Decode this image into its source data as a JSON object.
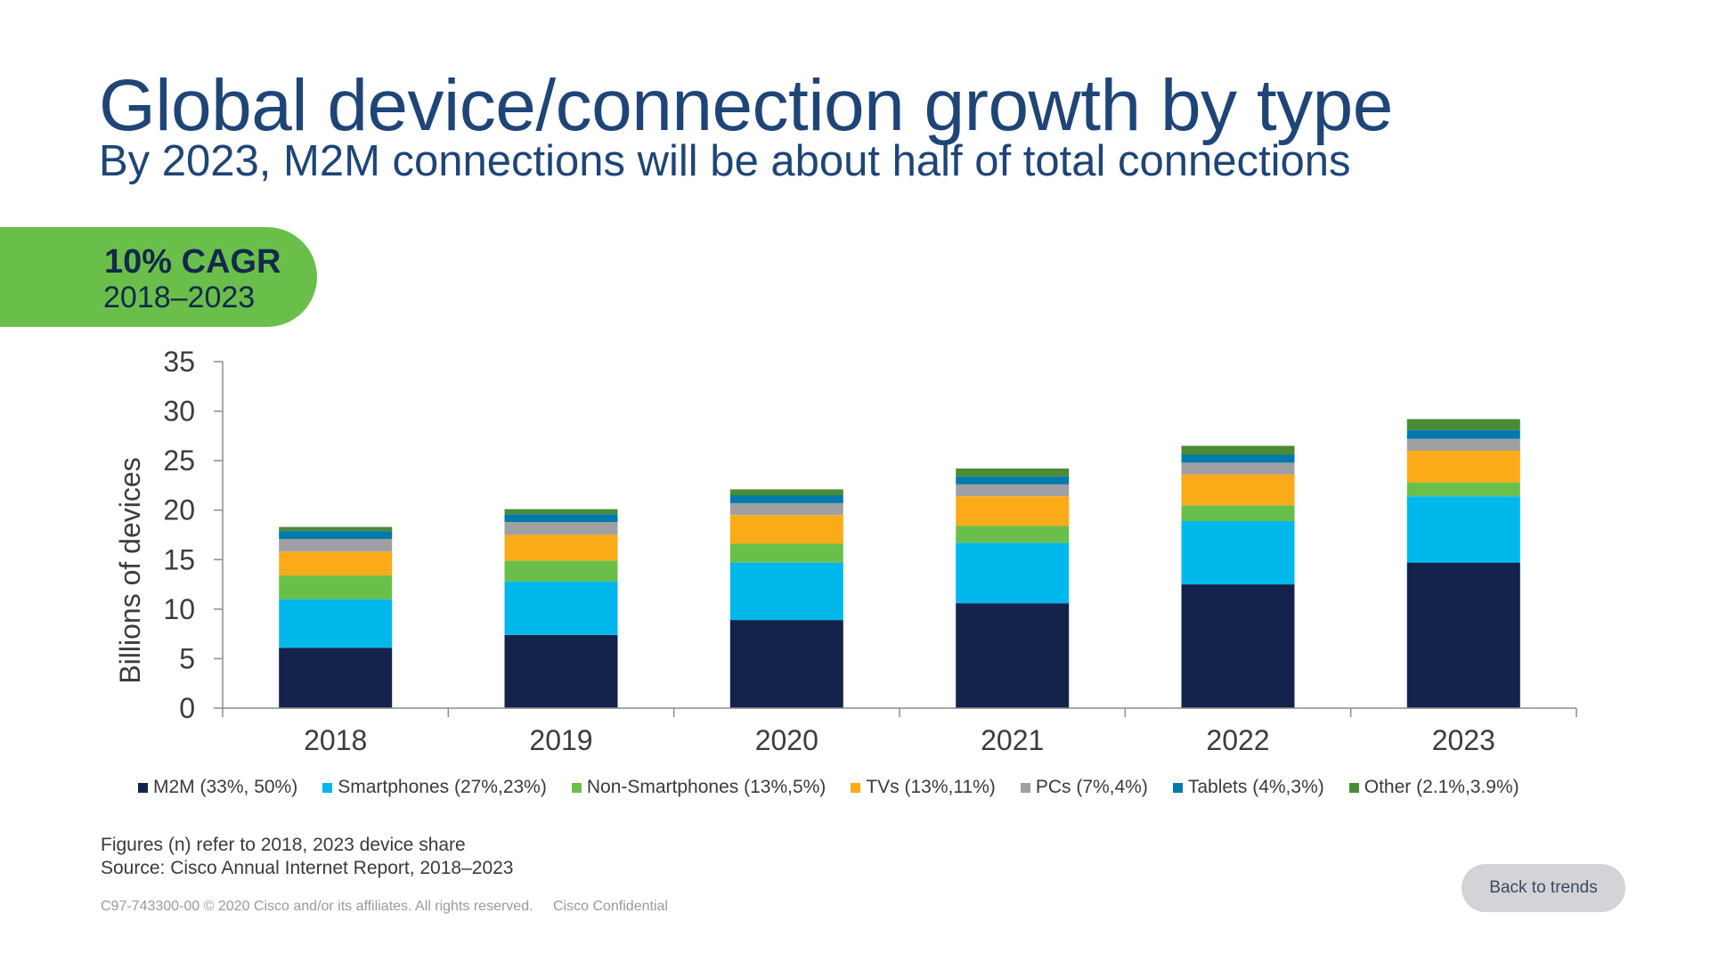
{
  "slide": {
    "title": "Global device/connection growth by type",
    "subtitle": "By 2023, M2M connections will be about half of total connections",
    "cagr_value": "10% CAGR",
    "cagr_period": "2018–2023",
    "footnote_line1": "Figures (n) refer to 2018, 2023 device share",
    "footnote_line2": "Source: Cisco Annual Internet Report, 2018–2023",
    "copyright": "C97-743300-00 © 2020  Cisco and/or its affiliates. All rights reserved.",
    "confidential": "Cisco Confidential",
    "back_button_label": "Back to trends"
  },
  "chart_data": {
    "type": "bar",
    "stacked": true,
    "ylabel": "Billions of devices",
    "xlabel": "",
    "ylim": [
      0,
      35
    ],
    "yticks": [
      "0",
      "5",
      "10",
      "15",
      "20",
      "25",
      "30",
      "35"
    ],
    "categories": [
      "2018",
      "2019",
      "2020",
      "2021",
      "2022",
      "2023"
    ],
    "legend_position": "bottom",
    "series": [
      {
        "name": "M2M (33%, 50%)",
        "color": "#13234b",
        "values": [
          6.1,
          7.4,
          8.9,
          10.6,
          12.5,
          14.7
        ]
      },
      {
        "name": "Smartphones (27%,23%)",
        "color": "#00b8eb",
        "values": [
          4.9,
          5.4,
          5.8,
          6.1,
          6.4,
          6.7
        ]
      },
      {
        "name": "Non-Smartphones (13%,5%)",
        "color": "#6abf4b",
        "values": [
          2.4,
          2.1,
          1.9,
          1.7,
          1.6,
          1.4
        ]
      },
      {
        "name": "TVs (13%,11%)",
        "color": "#fbab18",
        "values": [
          2.4,
          2.6,
          2.9,
          3.0,
          3.1,
          3.2
        ]
      },
      {
        "name": "PCs (7%,4%)",
        "color": "#a0a0a4",
        "values": [
          1.3,
          1.3,
          1.2,
          1.2,
          1.2,
          1.2
        ]
      },
      {
        "name": "Tablets (4%,3%)",
        "color": "#007aaa",
        "values": [
          0.8,
          0.8,
          0.8,
          0.8,
          0.8,
          0.9
        ]
      },
      {
        "name": "Other (2.1%,3.9%)",
        "color": "#4c8b35",
        "values": [
          0.4,
          0.5,
          0.6,
          0.8,
          0.9,
          1.1
        ]
      }
    ]
  }
}
